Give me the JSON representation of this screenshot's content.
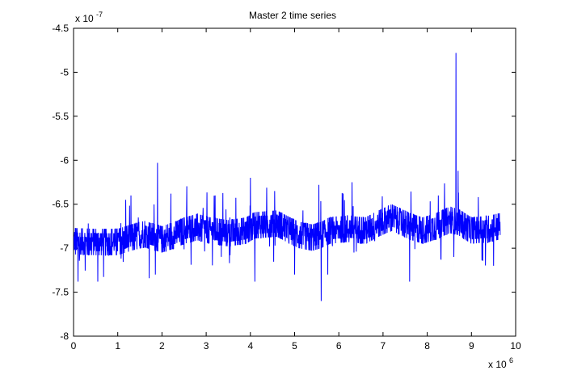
{
  "chart_data": {
    "type": "line",
    "title": "Master 2 time series",
    "xlabel": "",
    "ylabel": "",
    "x_multiplier_label": {
      "base": "x 10",
      "exponent": "6"
    },
    "y_multiplier_label": {
      "base": "x 10",
      "exponent": "-7"
    },
    "xlim": [
      0,
      10
    ],
    "ylim": [
      -8,
      -4.5
    ],
    "xticks": [
      "0",
      "1",
      "2",
      "3",
      "4",
      "5",
      "6",
      "7",
      "8",
      "9",
      "10"
    ],
    "yticks": [
      "-4.5",
      "-5",
      "-5.5",
      "-6",
      "-6.5",
      "-7",
      "-7.5",
      "-8"
    ],
    "grid": false,
    "line_color": "#0000ff",
    "series": [
      {
        "x_start": 0,
        "x_end": 9.65,
        "baseline": [
          [
            0.0,
            -6.92
          ],
          [
            0.5,
            -6.93
          ],
          [
            1.0,
            -6.93
          ],
          [
            1.3,
            -6.88
          ],
          [
            1.6,
            -6.84
          ],
          [
            2.0,
            -6.9
          ],
          [
            2.3,
            -6.85
          ],
          [
            2.5,
            -6.8
          ],
          [
            2.8,
            -6.76
          ],
          [
            3.1,
            -6.8
          ],
          [
            3.5,
            -6.83
          ],
          [
            3.9,
            -6.8
          ],
          [
            4.1,
            -6.74
          ],
          [
            4.6,
            -6.72
          ],
          [
            4.9,
            -6.8
          ],
          [
            5.1,
            -6.85
          ],
          [
            5.4,
            -6.88
          ],
          [
            5.6,
            -6.85
          ],
          [
            5.8,
            -6.8
          ],
          [
            6.2,
            -6.78
          ],
          [
            6.6,
            -6.8
          ],
          [
            6.9,
            -6.72
          ],
          [
            7.2,
            -6.65
          ],
          [
            7.6,
            -6.75
          ],
          [
            7.9,
            -6.8
          ],
          [
            8.2,
            -6.75
          ],
          [
            8.5,
            -6.68
          ],
          [
            8.7,
            -6.7
          ],
          [
            9.0,
            -6.8
          ],
          [
            9.4,
            -6.78
          ],
          [
            9.65,
            -6.75
          ]
        ],
        "spikes": [
          [
            0.1,
            -7.38
          ],
          [
            0.55,
            -7.38
          ],
          [
            1.3,
            -6.4
          ],
          [
            1.85,
            -7.3
          ],
          [
            1.9,
            -6.03
          ],
          [
            2.2,
            -6.38
          ],
          [
            3.2,
            -6.4
          ],
          [
            4.0,
            -6.2
          ],
          [
            4.1,
            -7.38
          ],
          [
            4.55,
            -6.35
          ],
          [
            5.0,
            -7.3
          ],
          [
            5.55,
            -6.28
          ],
          [
            5.6,
            -7.6
          ],
          [
            5.75,
            -7.3
          ],
          [
            6.3,
            -6.25
          ],
          [
            7.6,
            -7.38
          ],
          [
            8.25,
            -6.4
          ],
          [
            8.6,
            -7.1
          ],
          [
            8.65,
            -4.78
          ],
          [
            8.7,
            -6.12
          ],
          [
            9.5,
            -7.2
          ]
        ]
      }
    ]
  }
}
